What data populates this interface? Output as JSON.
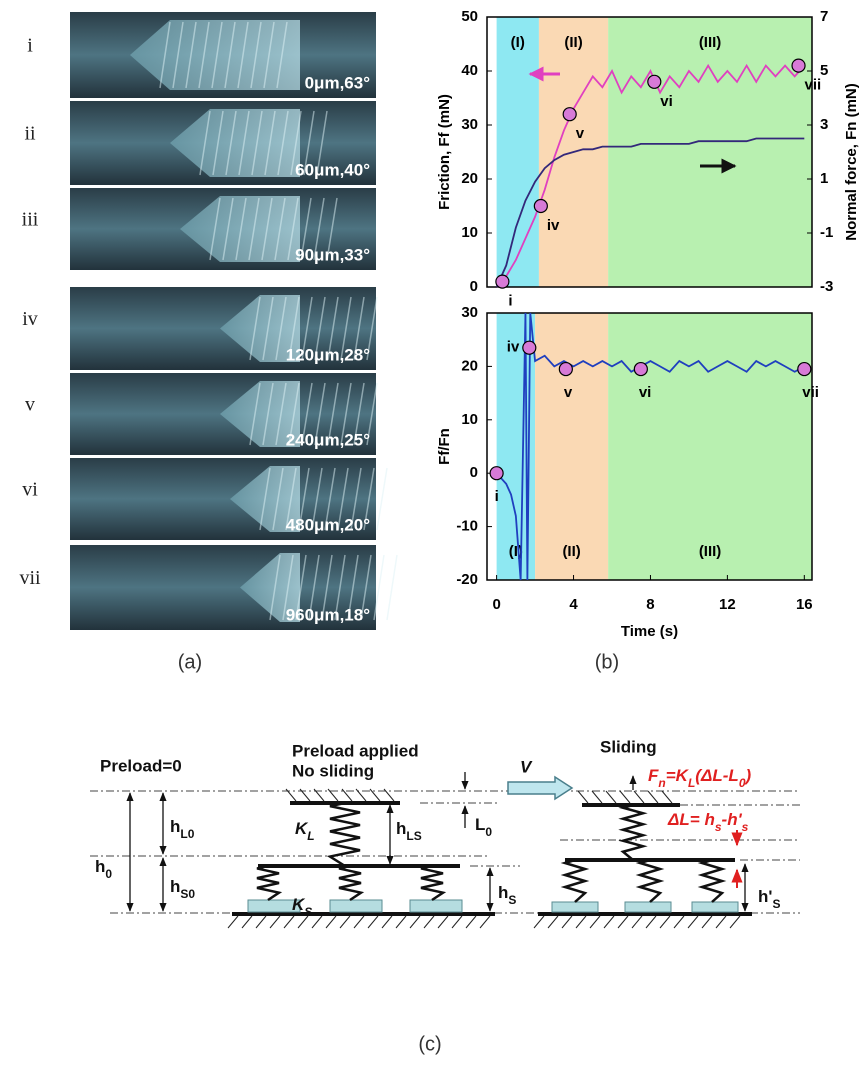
{
  "panel_a": {
    "label": "(a)",
    "frames": [
      {
        "index": "i",
        "caption": "0μm,63°"
      },
      {
        "index": "ii",
        "caption": "60μm,40°"
      },
      {
        "index": "iii",
        "caption": "90μm,33°"
      },
      {
        "index": "iv",
        "caption": "120μm,28°"
      },
      {
        "index": "v",
        "caption": "240μm,25°"
      },
      {
        "index": "vi",
        "caption": "480μm,20°"
      },
      {
        "index": "vii",
        "caption": "960μm,18°"
      }
    ]
  },
  "panel_b_label": "(b)",
  "chart_data": [
    {
      "type": "line",
      "ylabel": "Friction, Ff (mN)",
      "y2label": "Normal force, Fn (mN)",
      "xlim": [
        -0.5,
        16.4
      ],
      "ylim": [
        0,
        50
      ],
      "yticks": [
        0,
        10,
        20,
        30,
        40,
        50
      ],
      "y2lim": [
        -3,
        7
      ],
      "y2ticks": [
        -3,
        -1,
        1,
        3,
        5,
        7
      ],
      "regions": [
        {
          "label": "(I)",
          "start": 0,
          "end": 2.2,
          "color": "#8ee8f2"
        },
        {
          "label": "(II)",
          "start": 2.2,
          "end": 5.8,
          "color": "#fad9b4"
        },
        {
          "label": "(III)",
          "start": 5.8,
          "end": 16.4,
          "color": "#b8f0b0"
        }
      ],
      "x": [
        0,
        0.5,
        1,
        1.5,
        2,
        2.5,
        3,
        3.5,
        4,
        4.5,
        5,
        5.5,
        6,
        6.5,
        7,
        7.5,
        8,
        8.5,
        9,
        9.5,
        10,
        10.5,
        11,
        11.5,
        12,
        12.5,
        13,
        13.5,
        14,
        14.5,
        15,
        15.5,
        16
      ],
      "series": [
        {
          "color": "#e040c0",
          "values": [
            0,
            2,
            5,
            9,
            13,
            18,
            24,
            29,
            33,
            36,
            39,
            37,
            40,
            36,
            39,
            37,
            40,
            36,
            39,
            37,
            40,
            38,
            41,
            38,
            40,
            38,
            41,
            38,
            41,
            39,
            41,
            39,
            41
          ]
        },
        {
          "color": "#33287a",
          "axis": "y2",
          "values": [
            -3,
            -2.2,
            -0.8,
            0.2,
            0.9,
            1.4,
            1.7,
            1.9,
            2.0,
            2.1,
            2.1,
            2.2,
            2.2,
            2.2,
            2.2,
            2.3,
            2.3,
            2.3,
            2.3,
            2.3,
            2.3,
            2.4,
            2.4,
            2.4,
            2.4,
            2.4,
            2.4,
            2.5,
            2.5,
            2.5,
            2.5,
            2.5,
            2.5
          ]
        }
      ],
      "points": [
        {
          "label": "i",
          "x": 0.3,
          "y": 1
        },
        {
          "label": "iv",
          "x": 2.3,
          "y": 15
        },
        {
          "label": "v",
          "x": 3.8,
          "y": 32
        },
        {
          "label": "vi",
          "x": 8.2,
          "y": 38
        },
        {
          "label": "vii",
          "x": 15.7,
          "y": 41
        }
      ]
    },
    {
      "type": "line",
      "ylabel": "Ff/Fn",
      "xlabel": "Time (s)",
      "xlim": [
        -0.5,
        16.4
      ],
      "xticks": [
        0,
        4,
        8,
        12,
        16
      ],
      "ylim": [
        -20,
        30
      ],
      "yticks": [
        -20,
        -10,
        0,
        10,
        20,
        30
      ],
      "regions": [
        {
          "label": "(I)",
          "start": 0,
          "end": 2.0,
          "color": "#8ee8f2"
        },
        {
          "label": "(II)",
          "start": 2.0,
          "end": 5.8,
          "color": "#fad9b4"
        },
        {
          "label": "(III)",
          "start": 5.8,
          "end": 16.4,
          "color": "#b8f0b0"
        }
      ],
      "x": [
        0,
        0.25,
        0.5,
        0.75,
        1,
        1.25,
        1.5,
        1.6,
        1.75,
        2,
        2.5,
        3,
        3.5,
        4,
        4.5,
        5,
        5.5,
        6,
        6.5,
        7,
        7.5,
        8,
        8.5,
        9,
        9.5,
        10,
        10.5,
        11,
        11.5,
        12,
        12.5,
        13,
        13.5,
        14,
        14.5,
        15,
        15.5,
        16
      ],
      "series": [
        {
          "color": "#1f3fbf",
          "values": [
            0,
            -1,
            -2,
            -4,
            -8,
            -20,
            30,
            -20,
            30,
            21,
            22,
            20,
            21,
            20,
            21,
            20,
            21,
            20,
            21,
            19,
            20,
            21,
            20,
            19,
            21,
            20,
            21,
            19,
            20,
            21,
            20,
            19,
            21,
            20,
            21,
            20,
            19,
            20
          ]
        }
      ],
      "points": [
        {
          "label": "i",
          "x": 0,
          "y": 0
        },
        {
          "label": "iv",
          "x": 1.7,
          "y": 23.5
        },
        {
          "label": "v",
          "x": 3.6,
          "y": 19.5
        },
        {
          "label": "vi",
          "x": 7.5,
          "y": 19.5
        },
        {
          "label": "vii",
          "x": 16,
          "y": 19.5
        }
      ]
    }
  ],
  "panel_c": {
    "label": "(c)",
    "preload_zero": "Preload=0",
    "preload_applied": "Preload applied",
    "no_sliding": "No sliding",
    "sliding": "Sliding",
    "velocity": "V",
    "fn": [
      "F",
      "n",
      "=K",
      "L",
      "(ΔL-L",
      "0",
      ")"
    ],
    "h0": [
      "h",
      "0"
    ],
    "hL0": [
      "h",
      "L0"
    ],
    "hS0": [
      "h",
      "S0"
    ],
    "KL": [
      "K",
      "L"
    ],
    "KS": [
      "K",
      "S"
    ],
    "hLS": [
      "h",
      "LS"
    ],
    "L0": [
      "L",
      "0"
    ],
    "hS": [
      "h",
      "S"
    ],
    "dL": [
      "ΔL= h",
      "s",
      "-h'",
      "s"
    ],
    "hpS": [
      "h'",
      "S"
    ]
  }
}
